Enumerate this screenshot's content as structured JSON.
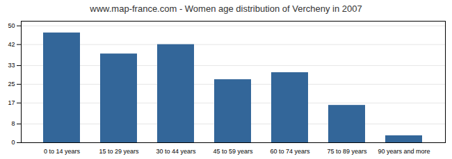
{
  "chart_data": {
    "type": "bar",
    "title": "www.map-france.com - Women age distribution of Vercheny in 2007",
    "categories": [
      "0 to 14 years",
      "15 to 29 years",
      "30 to 44 years",
      "45 to 59 years",
      "60 to 74 years",
      "75 to 89 years",
      "90 years and more"
    ],
    "values": [
      47,
      38,
      42,
      27,
      30,
      16,
      3
    ],
    "color": "#336699",
    "ylim": [
      0,
      52
    ],
    "yticks": [
      0,
      8,
      17,
      25,
      33,
      42,
      50
    ],
    "grid": true
  }
}
